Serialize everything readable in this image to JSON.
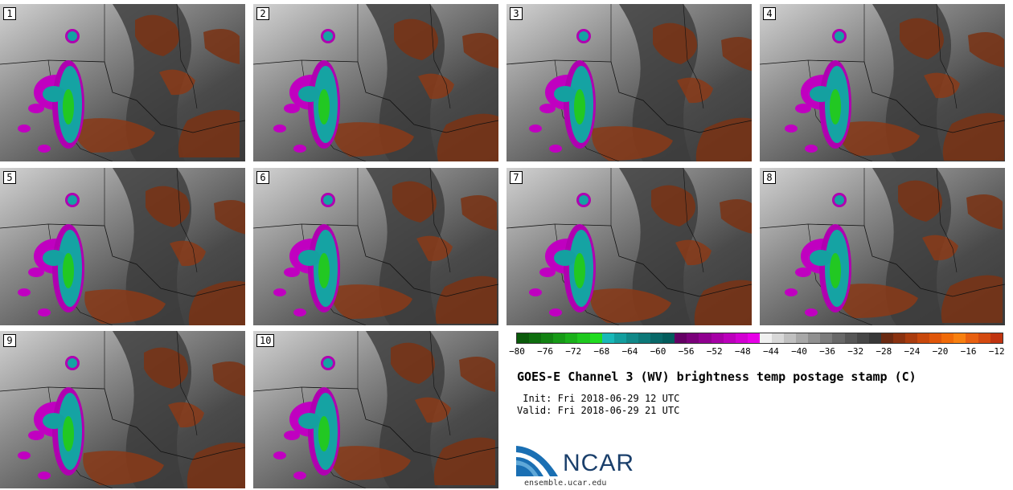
{
  "panels": [
    {
      "label": "1"
    },
    {
      "label": "2"
    },
    {
      "label": "3"
    },
    {
      "label": "4"
    },
    {
      "label": "5"
    },
    {
      "label": "6"
    },
    {
      "label": "7"
    },
    {
      "label": "8"
    },
    {
      "label": "9"
    },
    {
      "label": "10"
    }
  ],
  "colorbar": {
    "tick_labels": [
      "−80",
      "−76",
      "−72",
      "−68",
      "−64",
      "−60",
      "−56",
      "−52",
      "−48",
      "−44",
      "−40",
      "−36",
      "−32",
      "−28",
      "−24",
      "−20",
      "−16",
      "−12"
    ],
    "colors": [
      "#0a5a0a",
      "#0e6e0e",
      "#128212",
      "#169a16",
      "#1ab01a",
      "#1ec81e",
      "#20dc20",
      "#18b8b8",
      "#139e9e",
      "#108888",
      "#0c7878",
      "#086868",
      "#045c5c",
      "#640064",
      "#7a007a",
      "#900090",
      "#a600a6",
      "#bc00bc",
      "#d200d2",
      "#e800e8",
      "#f0f0f0",
      "#d8d8d8",
      "#c0c0c0",
      "#a8a8a8",
      "#909090",
      "#7c7c7c",
      "#686868",
      "#565656",
      "#464646",
      "#383838",
      "#6a2a12",
      "#8a3210",
      "#aa3c0e",
      "#c8480c",
      "#e0560a",
      "#f06a08",
      "#f88010",
      "#e86010",
      "#d44a10",
      "#c03410"
    ]
  },
  "title": "GOES-E Channel 3 (WV) brightness temp postage stamp (C)",
  "init": " Init: Fri 2018-06-29 12 UTC",
  "valid": "Valid: Fri 2018-06-29 21 UTC",
  "logo_text": "NCAR",
  "url": "ensemble.ucar.edu"
}
